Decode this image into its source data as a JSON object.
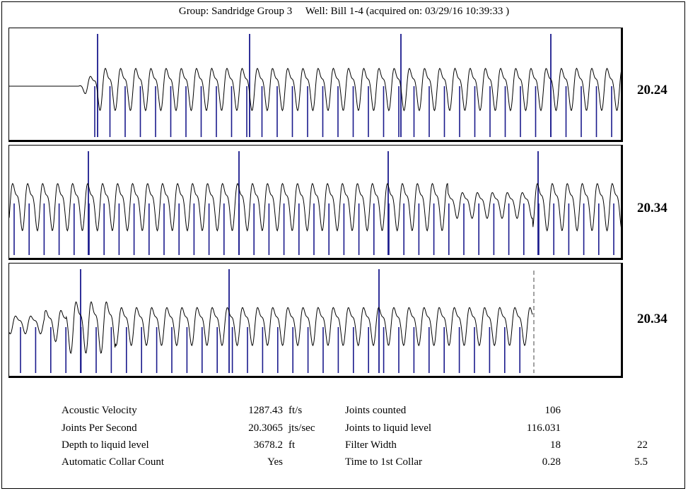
{
  "header": {
    "group_label": "Group:",
    "group": "Sandridge Group 3",
    "well_label": "Well:",
    "well": "Bill 1-4",
    "acquired_label": "acquired on:",
    "acquired": "03/29/16 10:39:33"
  },
  "chart_data": [
    {
      "type": "line",
      "panel": 1,
      "title": "",
      "joints_per_second": "20.24",
      "signal": "acoustic trace with collar markers",
      "series": [
        {
          "values": []
        }
      ]
    },
    {
      "type": "line",
      "panel": 2,
      "title": "",
      "joints_per_second": "20.34",
      "series": [
        {
          "values": []
        }
      ]
    },
    {
      "type": "line",
      "panel": 3,
      "title": "",
      "joints_per_second": "20.34",
      "series": [
        {
          "values": []
        }
      ]
    }
  ],
  "results": {
    "acoustic_velocity": {
      "label": "Acoustic Velocity",
      "value": "1287.43",
      "unit": "ft/s"
    },
    "joints_per_second": {
      "label": "Joints Per Second",
      "value": "20.3065",
      "unit": "jts/sec"
    },
    "depth_to_liquid": {
      "label": "Depth to liquid level",
      "value": "3678.2",
      "unit": "ft"
    },
    "auto_collar_count": {
      "label": "Automatic Collar Count",
      "value": "Yes"
    },
    "joints_counted": {
      "label": "Joints counted",
      "value": "106"
    },
    "joints_to_liquid": {
      "label": "Joints to liquid level",
      "value": "116.031"
    },
    "filter_width": {
      "label": "Filter Width",
      "value": "18",
      "value2": "22"
    },
    "time_to_first_collar": {
      "label": "Time to 1st Collar",
      "value": "0.28",
      "value2": "5.5"
    }
  },
  "colors": {
    "trace": "#000000",
    "collar_marker": "#1a1a8c"
  }
}
